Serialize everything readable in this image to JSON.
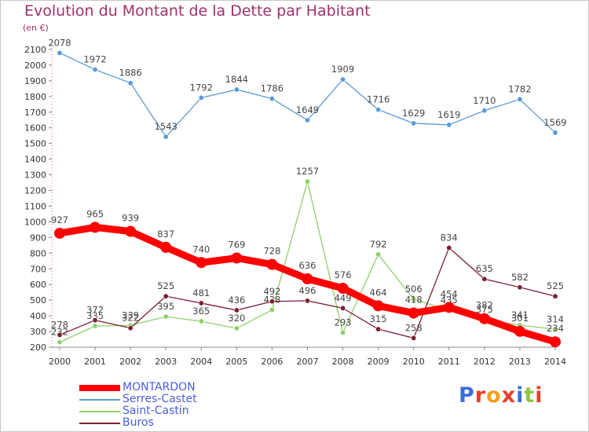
{
  "title": "Evolution du Montant de la Dette par Habitant",
  "subtitle": "(en €)",
  "logo": {
    "text": "Proxiti",
    "letter_colors": [
      "#3a6fd8",
      "#e2402a",
      "#f0a020",
      "#e2402a",
      "#3a6fd8",
      "#8dc63f",
      "#e2402a"
    ]
  },
  "chart_data": {
    "type": "line",
    "x": [
      2000,
      2001,
      2002,
      2003,
      2004,
      2005,
      2006,
      2007,
      2008,
      2009,
      2010,
      2011,
      2012,
      2013,
      2014
    ],
    "ylim": [
      200,
      2100
    ],
    "yticks": [
      200,
      300,
      400,
      500,
      600,
      700,
      800,
      900,
      1000,
      1100,
      1200,
      1300,
      1400,
      1500,
      1600,
      1700,
      1800,
      1900,
      2000,
      2100
    ],
    "grid": false,
    "legend_position": "bottom-left",
    "series": [
      {
        "name": "Serres-Castet",
        "color": "#5b9bd5",
        "values": [
          2078,
          1972,
          1886,
          1543,
          1792,
          1844,
          1786,
          1649,
          1909,
          1716,
          1629,
          1619,
          1710,
          1782,
          1569
        ]
      },
      {
        "name": "Saint-Castin",
        "color": "#8fd06a",
        "values": [
          232,
          335,
          339,
          395,
          365,
          320,
          438,
          1257,
          293,
          792,
          506,
          435,
          375,
          341,
          314
        ]
      },
      {
        "name": "Buros",
        "color": "#7a2030",
        "values": [
          278,
          372,
          322,
          525,
          481,
          436,
          492,
          496,
          449,
          315,
          258,
          834,
          635,
          582,
          525
        ]
      },
      {
        "name": "MONTARDON",
        "color": "#ff0000",
        "values": [
          927,
          965,
          939,
          837,
          740,
          769,
          728,
          636,
          576,
          464,
          418,
          454,
          382,
          301,
          234
        ]
      }
    ]
  }
}
